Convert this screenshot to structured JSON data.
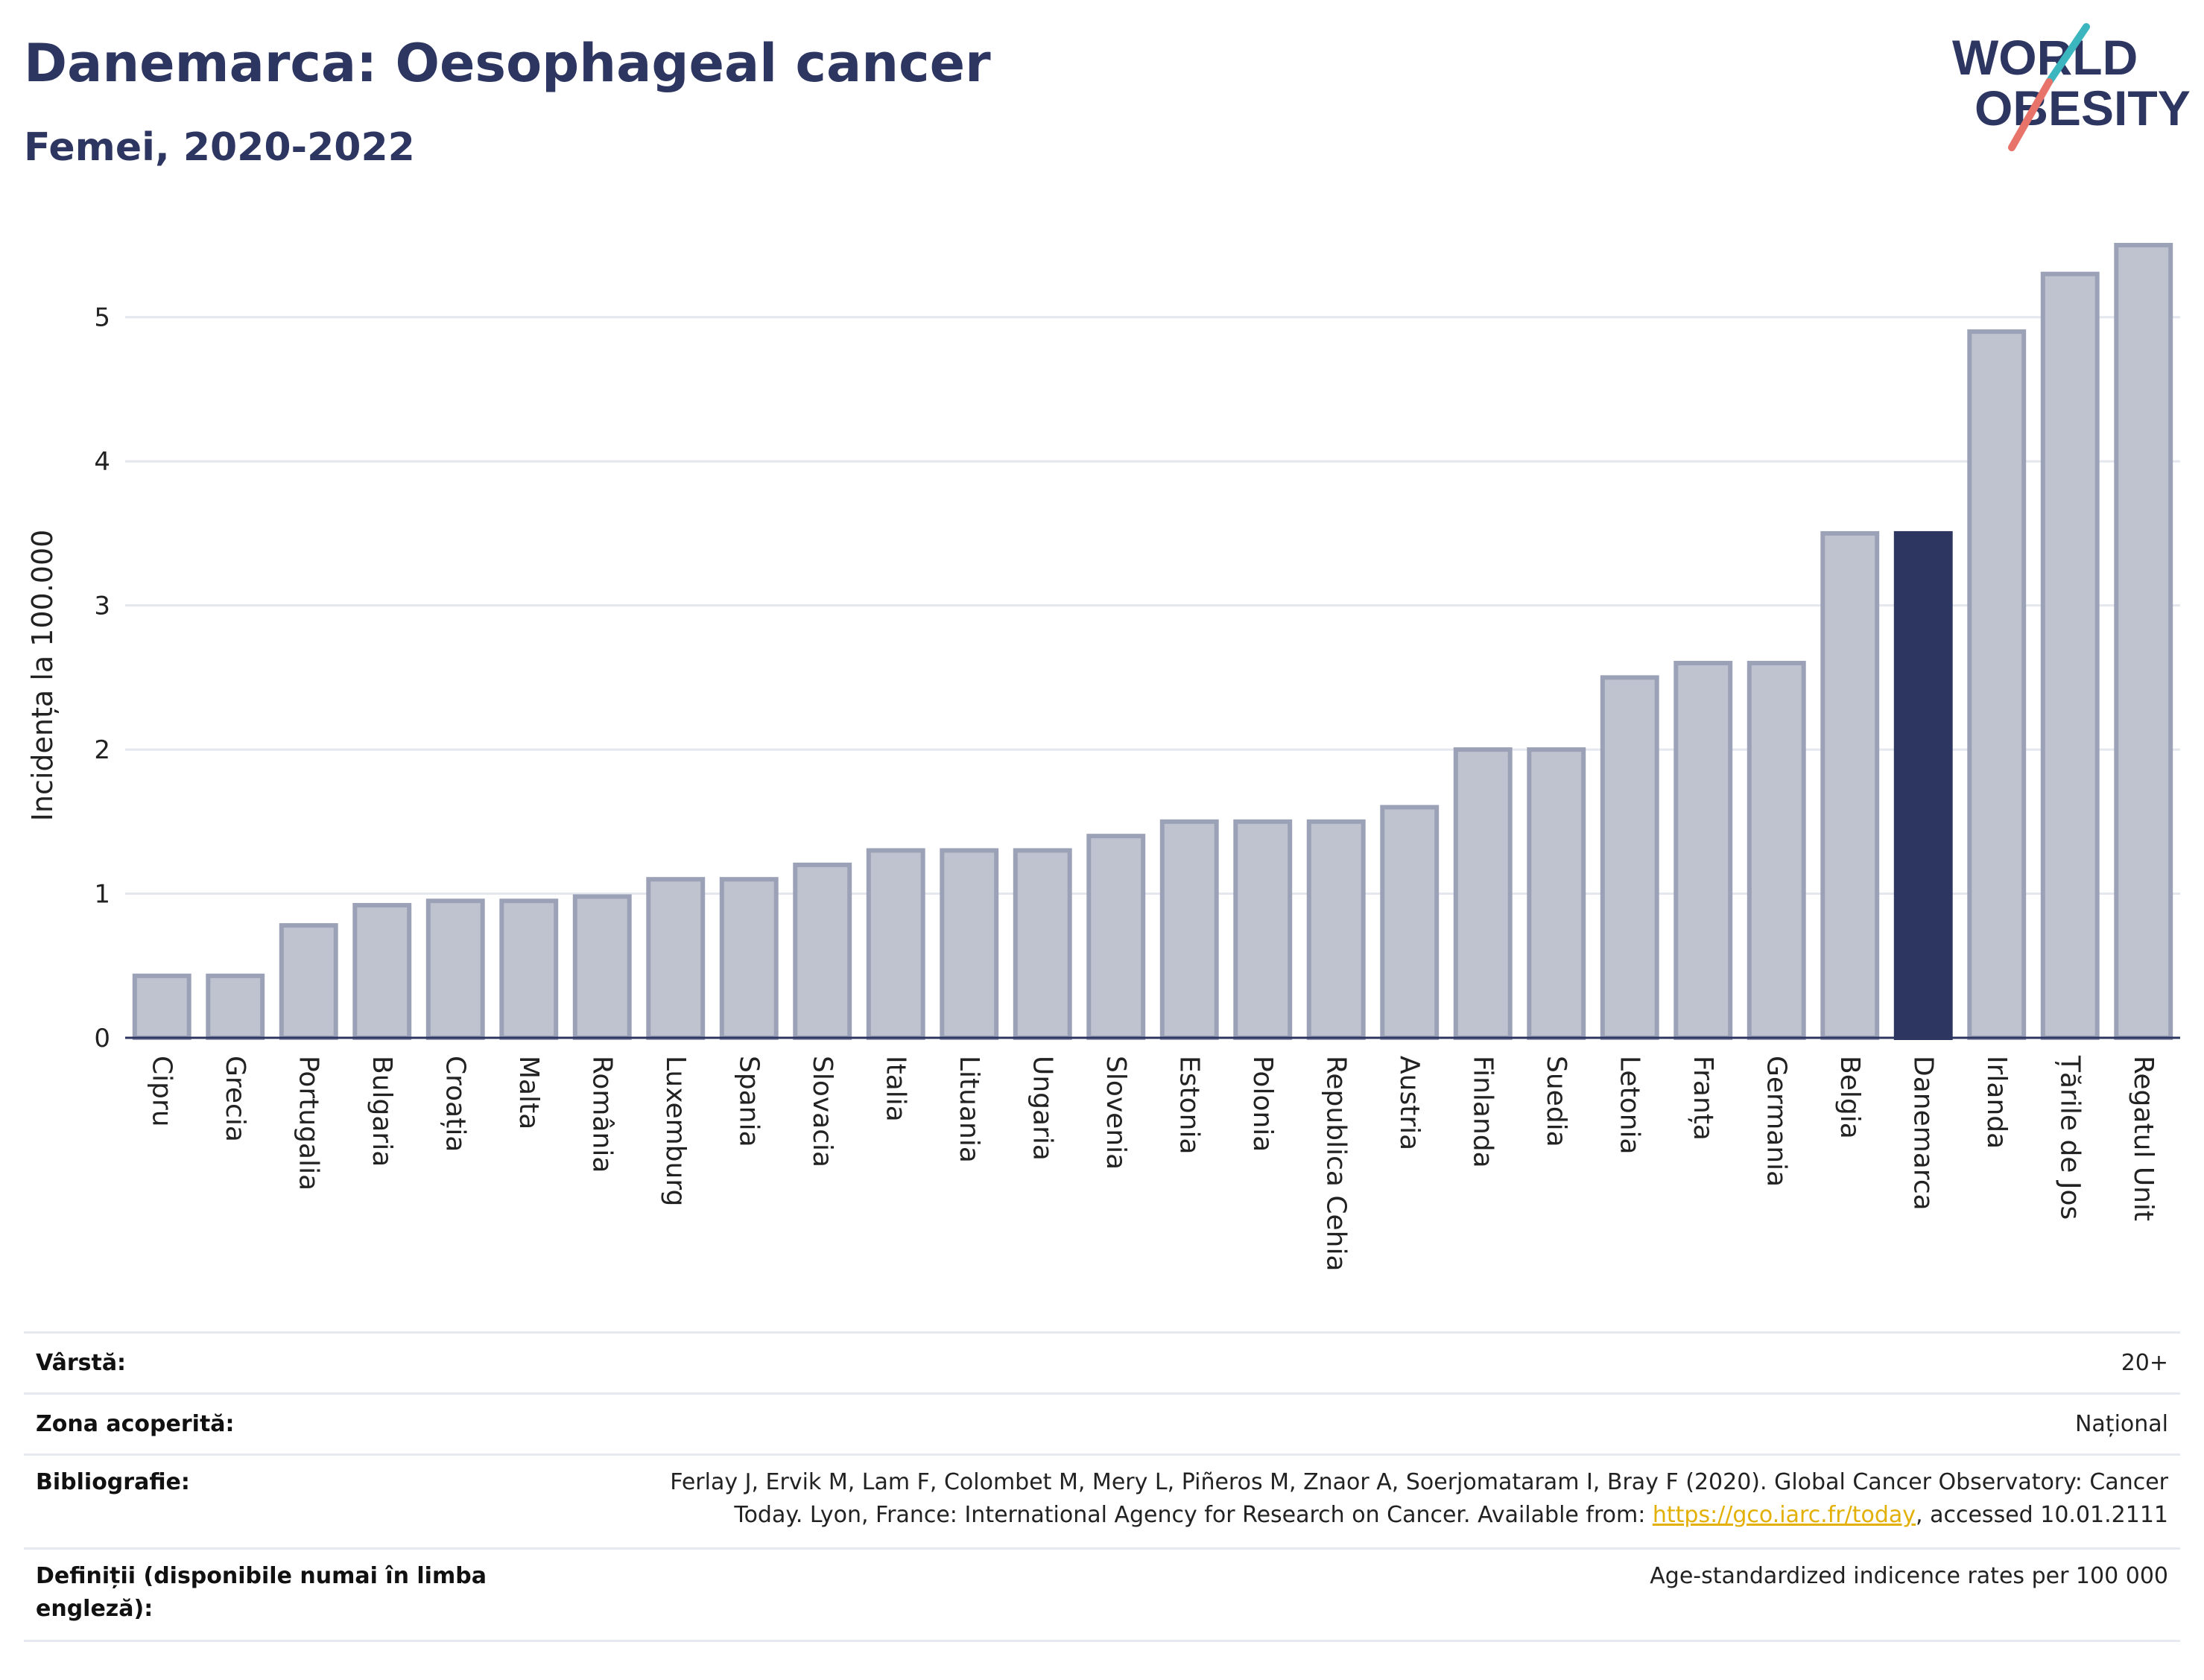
{
  "header": {
    "title": "Danemarca: Oesophageal cancer",
    "subtitle": "Femei, 2020-2022"
  },
  "logo": {
    "line1": "WORLD",
    "line2": "OBESITY",
    "icon": "world-obesity-logo"
  },
  "chart_data": {
    "type": "bar",
    "ylabel": "Incidența la 100.000",
    "xlabel": "",
    "ylim": [
      0,
      5.65
    ],
    "yticks": [
      0,
      1,
      2,
      3,
      4,
      5
    ],
    "grid": true,
    "highlight": "Danemarca",
    "colors": {
      "bar": "#bfc3cf",
      "bar_edge": "#9ba1b6",
      "highlight": "#2d3561"
    },
    "categories": [
      "Cipru",
      "Grecia",
      "Portugalia",
      "Bulgaria",
      "Croația",
      "Malta",
      "România",
      "Luxemburg",
      "Spania",
      "Slovacia",
      "Italia",
      "Lituania",
      "Ungaria",
      "Slovenia",
      "Estonia",
      "Polonia",
      "Republica Cehia",
      "Austria",
      "Finlanda",
      "Suedia",
      "Letonia",
      "Franța",
      "Germania",
      "Belgia",
      "Danemarca",
      "Irlanda",
      "Țările de Jos",
      "Regatul Unit"
    ],
    "values": [
      0.43,
      0.43,
      0.78,
      0.92,
      0.95,
      0.95,
      0.98,
      1.1,
      1.1,
      1.2,
      1.3,
      1.3,
      1.3,
      1.4,
      1.5,
      1.5,
      1.5,
      1.6,
      2.0,
      2.0,
      2.5,
      2.6,
      2.6,
      3.5,
      3.5,
      4.9,
      5.3,
      5.5
    ]
  },
  "meta": {
    "age_label": "Vârstă:",
    "age_value": "20+",
    "coverage_label": "Zona acoperită:",
    "coverage_value": "Național",
    "bibliography_label": "Bibliografie:",
    "bibliography_line1": "Ferlay J, Ervik M, Lam F, Colombet M, Mery L, Piñeros M, Znaor A, Soerjomataram I, Bray F (2020). Global Cancer Observatory: Cancer",
    "bibliography_line2_pre": "Today. Lyon, France: International Agency for Research on Cancer. Available from: ",
    "bibliography_link": "https://gco.iarc.fr/today",
    "bibliography_line2_post": ", accessed 10.01.2111",
    "definitions_label_line1": "Definiții (disponibile numai în limba",
    "definitions_label_line2": "engleză):",
    "definitions_value": "Age-standardized indicence rates per 100 000"
  }
}
